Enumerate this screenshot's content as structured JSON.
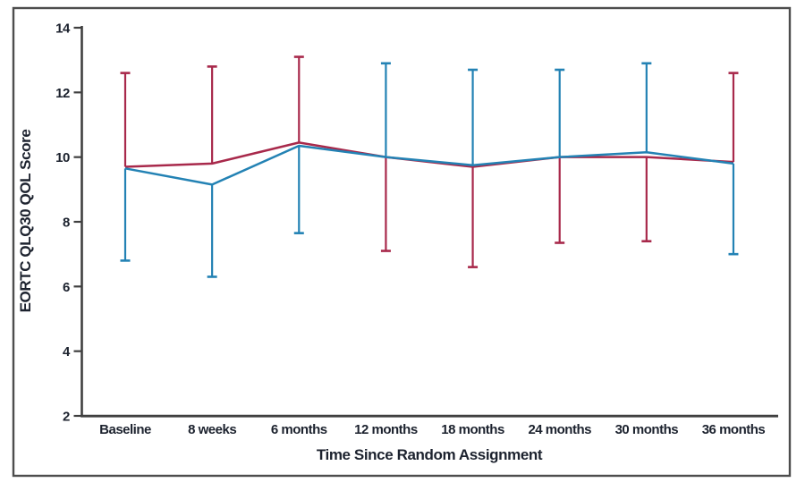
{
  "figure": {
    "background": "#ffffff",
    "border_color": "#4d4d4d",
    "axis_color": "#3f3f3f",
    "text_color": "#1c222e"
  },
  "chart_data": {
    "type": "line",
    "title": "",
    "xlabel": "Time Since Random Assignment",
    "ylabel": "EORTC QLQ30 QOL Score",
    "categories": [
      "Baseline",
      "8 weeks",
      "6 months",
      "12 months",
      "18 months",
      "24 months",
      "30 months",
      "36 months"
    ],
    "y_ticks": [
      2,
      4,
      6,
      8,
      10,
      12,
      14
    ],
    "ylim": [
      2,
      14
    ],
    "grid": false,
    "legend": "none",
    "error_bars": "one-sided, alternating direction per arm",
    "series": [
      {
        "name": "red-arm",
        "color": "#A8294B",
        "values": [
          9.7,
          9.8,
          10.45,
          10.0,
          9.7,
          10.0,
          10.0,
          9.85
        ],
        "error_dir": [
          "up",
          "up",
          "up",
          "down",
          "down",
          "down",
          "down",
          "up"
        ],
        "error_end": [
          12.6,
          12.8,
          13.1,
          7.1,
          6.6,
          7.35,
          7.4,
          12.6
        ]
      },
      {
        "name": "blue-arm",
        "color": "#2382B4",
        "values": [
          9.65,
          9.15,
          10.35,
          10.0,
          9.75,
          10.0,
          10.15,
          9.8
        ],
        "error_dir": [
          "down",
          "down",
          "down",
          "up",
          "up",
          "up",
          "up",
          "down"
        ],
        "error_end": [
          6.8,
          6.3,
          7.65,
          12.9,
          12.7,
          12.7,
          12.9,
          7.0
        ]
      }
    ]
  }
}
